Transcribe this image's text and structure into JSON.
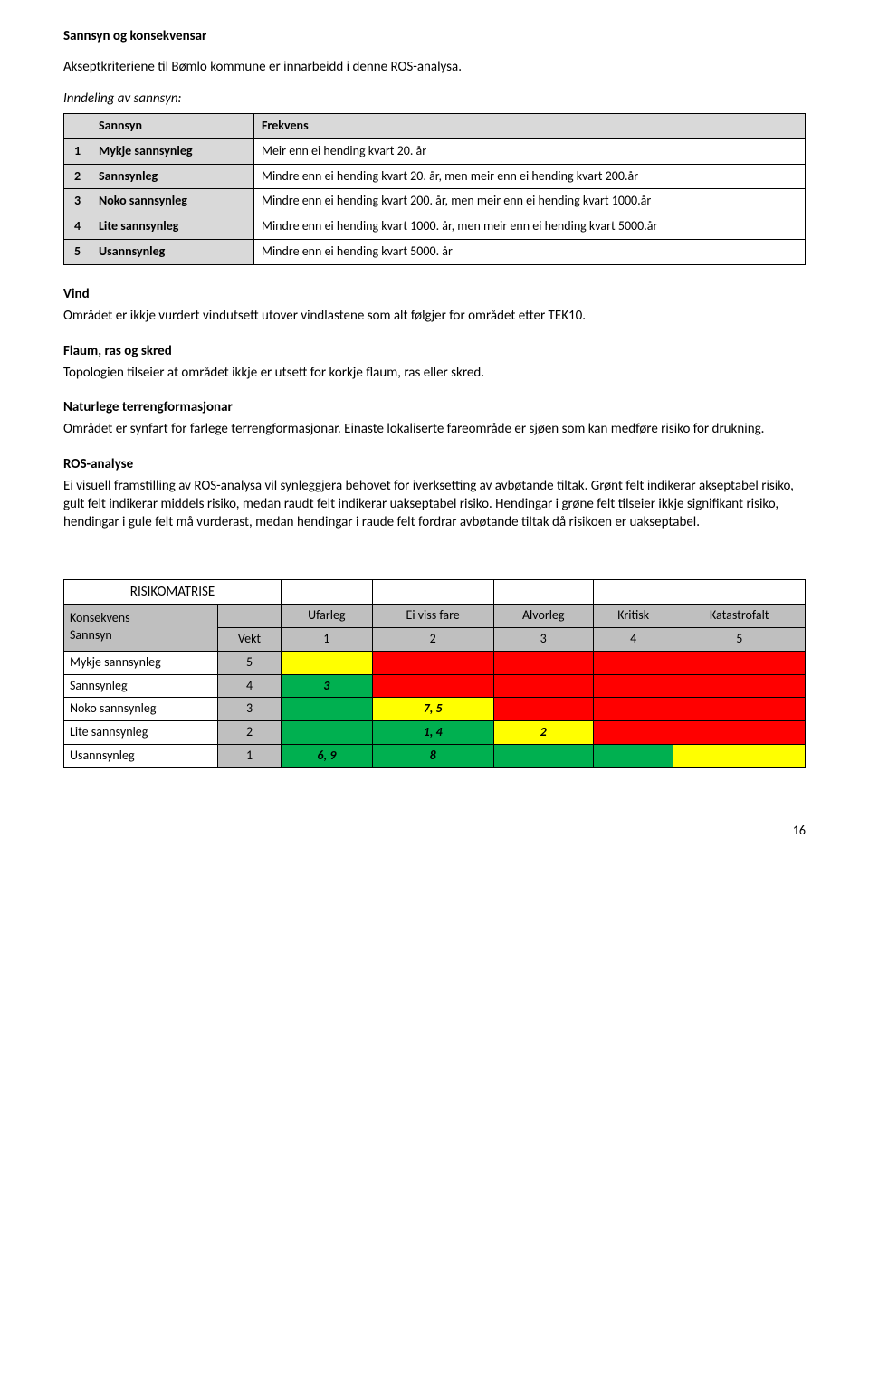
{
  "colors": {
    "grey_header": "#d9d9d9",
    "grey_matrix": "#bfbfbf",
    "green": "#00b050",
    "yellow": "#ffff00",
    "red": "#ff0000",
    "white": "#ffffff",
    "black": "#000000"
  },
  "top": {
    "title": "Sannsyn og konsekvensar",
    "intro": "Akseptkriteriene til Bømlo kommune er innarbeidd i denne ROS-analysa.",
    "inndeling": "Inndeling av sannsyn:"
  },
  "sannsyn_table": {
    "head_sannsyn": "Sannsyn",
    "head_frekvens": "Frekvens",
    "rows": [
      {
        "n": "1",
        "level": "Mykje sannsynleg",
        "freq": "Meir enn ei hending kvart 20. år"
      },
      {
        "n": "2",
        "level": "Sannsynleg",
        "freq": "Mindre enn ei hending kvart 20. år, men meir enn ei hending kvart 200.år"
      },
      {
        "n": "3",
        "level": "Noko sannsynleg",
        "freq": "Mindre enn ei hending kvart 200. år, men meir enn ei hending kvart 1000.år"
      },
      {
        "n": "4",
        "level": "Lite sannsynleg",
        "freq": "Mindre enn ei hending kvart 1000. år, men meir enn ei hending kvart 5000.år"
      },
      {
        "n": "5",
        "level": "Usannsynleg",
        "freq": "Mindre enn ei hending kvart 5000. år"
      }
    ]
  },
  "sections": {
    "vind_title": "Vind",
    "vind_body": "Området er ikkje vurdert vindutsett utover vindlastene som alt følgjer for området etter TEK10.",
    "flaum_title": "Flaum, ras og skred",
    "flaum_body": "Topologien tilseier at området ikkje er utsett for korkje flaum, ras eller skred.",
    "natur_title": "Naturlege terrengformasjonar",
    "natur_body": "Området er synfart for farlege terrengformasjonar. Einaste lokaliserte fareområde er sjøen som kan medføre risiko for drukning.",
    "ros_title": "ROS-analyse",
    "ros_body": "Ei visuell framstilling av ROS-analysa vil synleggjera behovet for iverksetting av avbøtande tiltak. Grønt felt indikerar akseptabel risiko, gult felt indikerar middels risiko, medan raudt felt indikerar uakseptabel risiko. Hendingar i grøne felt tilseier ikkje signifikant risiko, hendingar i gule felt må vurderast, medan hendingar i raude felt fordrar avbøtande tiltak då risikoen er uakseptabel."
  },
  "risk_matrix": {
    "title": "RISIKOMATRISE",
    "row_konsekvens": "Konsekvens",
    "row_sannsyn": "Sannsyn",
    "col_vekt": "Vekt",
    "cols": [
      "Ufarleg",
      "Ei viss fare",
      "Alvorleg",
      "Kritisk",
      "Katastrofalt"
    ],
    "col_nums": [
      "1",
      "2",
      "3",
      "4",
      "5"
    ],
    "rows": [
      {
        "label": "Mykje sannsynleg",
        "vekt": "5",
        "cells": [
          {
            "text": "",
            "bg": "#ffff00"
          },
          {
            "text": "",
            "bg": "#ff0000"
          },
          {
            "text": "",
            "bg": "#ff0000"
          },
          {
            "text": "",
            "bg": "#ff0000"
          },
          {
            "text": "",
            "bg": "#ff0000"
          }
        ]
      },
      {
        "label": "Sannsynleg",
        "vekt": "4",
        "cells": [
          {
            "text": "3",
            "bg": "#00b050"
          },
          {
            "text": "",
            "bg": "#ff0000"
          },
          {
            "text": "",
            "bg": "#ff0000"
          },
          {
            "text": "",
            "bg": "#ff0000"
          },
          {
            "text": "",
            "bg": "#ff0000"
          }
        ]
      },
      {
        "label": "Noko sannsynleg",
        "vekt": "3",
        "cells": [
          {
            "text": "",
            "bg": "#00b050"
          },
          {
            "text": "7, 5",
            "bg": "#ffff00"
          },
          {
            "text": "",
            "bg": "#ff0000"
          },
          {
            "text": "",
            "bg": "#ff0000"
          },
          {
            "text": "",
            "bg": "#ff0000"
          }
        ]
      },
      {
        "label": "Lite sannsynleg",
        "vekt": "2",
        "cells": [
          {
            "text": "",
            "bg": "#00b050"
          },
          {
            "text": "1, 4",
            "bg": "#00b050"
          },
          {
            "text": "2",
            "bg": "#ffff00"
          },
          {
            "text": "",
            "bg": "#ff0000"
          },
          {
            "text": "",
            "bg": "#ff0000"
          }
        ]
      },
      {
        "label": "Usannsynleg",
        "vekt": "1",
        "cells": [
          {
            "text": "6, 9",
            "bg": "#00b050"
          },
          {
            "text": "8",
            "bg": "#00b050"
          },
          {
            "text": "",
            "bg": "#00b050"
          },
          {
            "text": "",
            "bg": "#00b050"
          },
          {
            "text": "",
            "bg": "#ffff00"
          }
        ]
      }
    ]
  },
  "page_number": "16"
}
